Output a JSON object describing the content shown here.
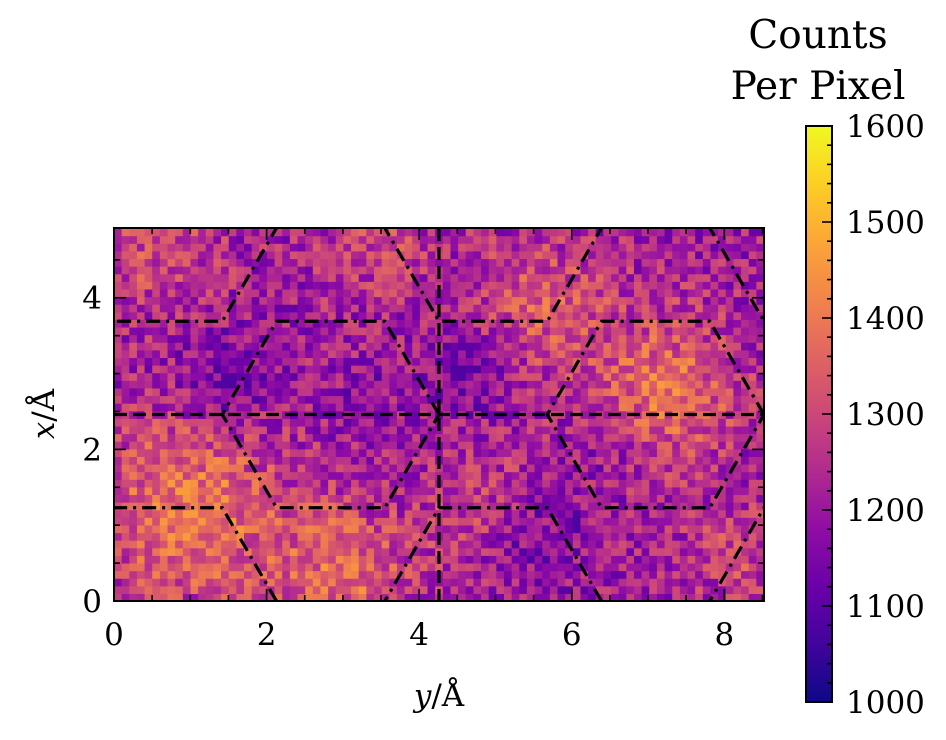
{
  "chart_data": {
    "type": "heatmap",
    "title": "",
    "xlabel": {
      "var": "y",
      "unit": "/Å"
    },
    "ylabel": {
      "var": "x",
      "unit": "/Å"
    },
    "xlim": [
      0,
      8.52
    ],
    "ylim": [
      0,
      4.92
    ],
    "x_ticks": [
      0,
      2,
      4,
      6,
      8
    ],
    "y_ticks": [
      0,
      2,
      4
    ],
    "grid": false,
    "colormap": "plasma",
    "colorbar": {
      "title_lines": [
        "Counts",
        "Per Pixel"
      ],
      "range": [
        1000,
        1600
      ],
      "ticks": [
        1000,
        1100,
        1200,
        1300,
        1400,
        1500,
        1600
      ]
    },
    "heatmap": {
      "nx": 85,
      "ny": 49,
      "value_range": [
        1080,
        1460
      ],
      "description_note": "noisy count density; higher counts around hexagon centers in the lower-left and right cells"
    },
    "overlays": {
      "hexagon_lattice_dashdot": {
        "color": "#000000",
        "cells": [
          {
            "center": [
              2.84,
              2.46
            ],
            "radius": 1.42
          },
          {
            "center": [
              7.1,
              2.46
            ],
            "radius": 1.42
          },
          {
            "center": [
              0.71,
              0.0
            ],
            "radius": 1.42
          },
          {
            "center": [
              4.97,
              0.0
            ],
            "radius": 1.42
          },
          {
            "center": [
              0.71,
              4.92
            ],
            "radius": 1.42
          },
          {
            "center": [
              4.97,
              4.92
            ],
            "radius": 1.42
          },
          {
            "center": [
              9.23,
              4.92
            ],
            "radius": 1.42
          },
          {
            "center": [
              9.23,
              0.0
            ],
            "radius": 1.42
          }
        ]
      },
      "dashed_lines": [
        {
          "orientation": "horizontal",
          "value": 2.46
        },
        {
          "orientation": "vertical",
          "value": 4.26
        }
      ]
    }
  },
  "colors": {
    "frame": "#000000",
    "overlay": "#000000"
  }
}
